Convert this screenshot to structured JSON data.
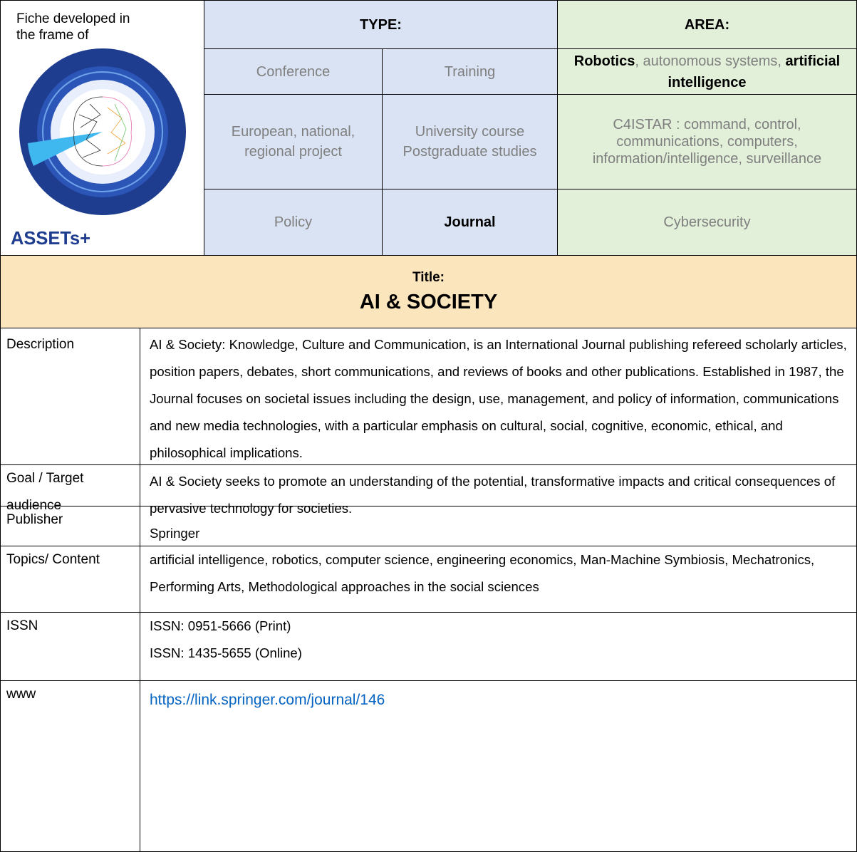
{
  "header": {
    "fiche_note": "Fiche developed in the frame of",
    "logo_label": "ASSETs+"
  },
  "type": {
    "heading": "TYPE:",
    "rows": [
      [
        {
          "text": "Conference",
          "selected": false
        },
        {
          "text": "Training",
          "selected": false
        }
      ],
      [
        {
          "text": "European, national, regional project",
          "selected": false
        },
        {
          "text": "University course Postgraduate studies",
          "selected": false
        }
      ],
      [
        {
          "text": "Policy",
          "selected": false
        },
        {
          "text": "Journal",
          "selected": true
        }
      ]
    ]
  },
  "area": {
    "heading": "AREA:",
    "rows": [
      [
        {
          "text": "Robotics",
          "bold": true
        },
        {
          "text": ", autonomous systems, ",
          "bold": false
        },
        {
          "text": "artificial intelligence",
          "bold": true
        }
      ],
      [
        {
          "text": "C4ISTAR : command, control, communications, computers, information/intelligence, surveillance",
          "bold": false
        }
      ],
      [
        {
          "text": "Cybersecurity",
          "bold": false
        }
      ]
    ]
  },
  "title": {
    "label": "Title:",
    "text": "AI & SOCIETY"
  },
  "details": [
    {
      "label": "Description",
      "lines": [
        "AI & Society: Knowledge, Culture and Communication, is an International Journal publishing refereed scholarly articles, position papers, debates, short communications, and reviews of books and other publications. Established in 1987, the Journal focuses on societal issues including the design, use, management, and policy of information, communications and new media technologies, with a particular emphasis on cultural, social, cognitive, economic, ethical, and philosophical implications."
      ]
    },
    {
      "label": "Goal / Target audience",
      "lines": [
        "AI & Society seeks to promote an understanding of the potential, transformative impacts and critical consequences of pervasive technology for societies."
      ]
    },
    {
      "label": "Publisher",
      "lines": [
        "Springer"
      ]
    },
    {
      "label": "Topics/ Content",
      "lines": [
        "artificial intelligence, robotics, computer science, engineering economics, Man-Machine Symbiosis, Mechatronics, Performing Arts, Methodological approaches in the social sciences"
      ]
    },
    {
      "label": "ISSN",
      "lines": [
        "ISSN: 0951-5666 (Print)",
        "ISSN: 1435-5655 (Online)"
      ]
    },
    {
      "label": "www",
      "lines": [
        "https://link.springer.com/journal/146"
      ],
      "link": true
    }
  ]
}
